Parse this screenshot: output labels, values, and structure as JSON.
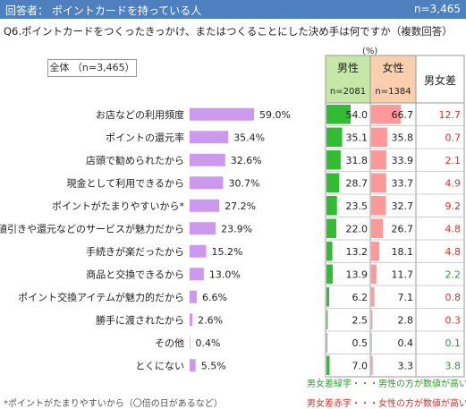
{
  "header": {
    "title": "回答者： ポイントカードを持っている人",
    "n": "n=3,465"
  },
  "question": "Q6.ポイントカードをつくったきっかけ、またはつくることにした決め手は何ですか（複数回答）",
  "unit_label": "(%)",
  "total_label": "全体 （n=3,465）",
  "table": {
    "male_label": "男性",
    "male_n": "n=2081",
    "female_label": "女性",
    "female_n": "n=1384",
    "diff_label": "男女差"
  },
  "colors": {
    "header": "#4e7fbf",
    "bar": "#cc99ee",
    "male_bar": "#33bb33",
    "female_bar": "#ff9999",
    "male_header": "#c6e8a6",
    "female_header": "#f9cfad",
    "diff_positive": "#d9302a",
    "diff_negative": "#2e9e2e"
  },
  "chart_data": {
    "type": "bar",
    "orientation": "horizontal",
    "categories": [
      "お店などの利用頻度",
      "ポイントの還元率",
      "店頭で勧められたから",
      "現金として利用できるから",
      "ポイントがたまりやすいから*",
      "値引きや還元などのサービスが魅力だから",
      "手続きが楽だったから",
      "商品と交換できるから",
      "ポイント交換アイテムが魅力的だから",
      "勝手に渡されたから",
      "その他",
      "とくにない"
    ],
    "total_values": [
      59.0,
      35.4,
      32.6,
      30.7,
      27.2,
      23.9,
      15.2,
      13.0,
      6.6,
      2.6,
      0.4,
      5.5
    ],
    "total_labels": [
      "59.0%",
      "35.4%",
      "32.6%",
      "30.7%",
      "27.2%",
      "23.9%",
      "15.2%",
      "13.0%",
      "6.6%",
      "2.6%",
      "0.4%",
      "5.5%"
    ],
    "male_values": [
      54.0,
      35.1,
      31.8,
      28.7,
      23.5,
      22.0,
      13.2,
      13.9,
      6.2,
      2.5,
      0.5,
      7.0
    ],
    "male_labels": [
      "54.0",
      "35.1",
      "31.8",
      "28.7",
      "23.5",
      "22.0",
      "13.2",
      "13.9",
      "6.2",
      "2.5",
      "0.5",
      "7.0"
    ],
    "female_values": [
      66.7,
      35.8,
      33.9,
      33.7,
      32.7,
      26.7,
      18.1,
      11.7,
      7.1,
      2.8,
      0.4,
      3.3
    ],
    "female_labels": [
      "66.7",
      "35.8",
      "33.9",
      "33.7",
      "32.7",
      "26.7",
      "18.1",
      "11.7",
      "7.1",
      "2.8",
      "0.4",
      "3.3"
    ],
    "diff_values": [
      12.7,
      0.7,
      2.1,
      4.9,
      9.2,
      4.8,
      4.8,
      2.2,
      0.8,
      0.3,
      0.1,
      3.8
    ],
    "diff_labels": [
      "12.7",
      "0.7",
      "2.1",
      "4.9",
      "9.2",
      "4.8",
      "4.8",
      "2.2",
      "0.8",
      "0.3",
      "0.1",
      "3.8"
    ],
    "diff_color": [
      "red",
      "red",
      "red",
      "red",
      "red",
      "red",
      "red",
      "green",
      "red",
      "red",
      "green",
      "green"
    ]
  },
  "footnote": "*ポイントがたまりやすいから（〇倍の日があるなど）",
  "legend": {
    "green": "男女差緑字・・・男性の方が数値が高い",
    "red": "男女差赤字・・・女性の方が数値が高い"
  }
}
